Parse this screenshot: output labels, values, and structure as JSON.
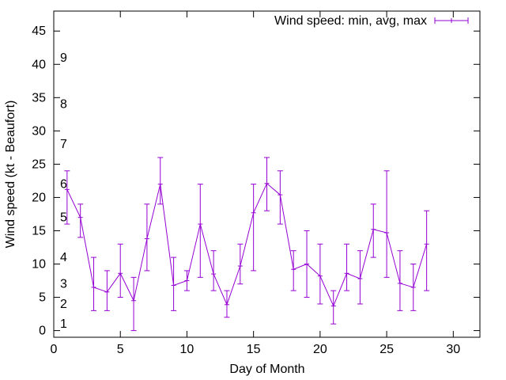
{
  "chart_data": {
    "type": "line",
    "xlabel": "Day of Month",
    "ylabel": "Wind speed (kt - Beaufort)",
    "xlim": [
      0,
      32
    ],
    "ylim": [
      -1,
      48
    ],
    "xticks": [
      "0",
      "5",
      "10",
      "15",
      "20",
      "25",
      "30"
    ],
    "xtick_values": [
      0,
      5,
      10,
      15,
      20,
      25,
      30
    ],
    "yticks": [
      "0",
      "5",
      "10",
      "15",
      "20",
      "25",
      "30",
      "35",
      "40",
      "45"
    ],
    "ytick_values": [
      0,
      5,
      10,
      15,
      20,
      25,
      30,
      35,
      40,
      45
    ],
    "grid": false,
    "legend_position": "top-right",
    "series": [
      {
        "name": "Wind speed: min, avg, max",
        "color": "#9400d3",
        "x": [
          1,
          2,
          3,
          4,
          5,
          6,
          7,
          8,
          9,
          10,
          11,
          12,
          13,
          14,
          15,
          16,
          17,
          18,
          19,
          20,
          21,
          22,
          23,
          24,
          25,
          26,
          27,
          28
        ],
        "avg": [
          21.2,
          17.0,
          6.5,
          5.8,
          8.6,
          4.5,
          13.8,
          22.0,
          6.8,
          7.5,
          16.0,
          8.5,
          3.9,
          9.7,
          17.7,
          22.1,
          20.4,
          9.2,
          10.0,
          8.2,
          3.7,
          8.6,
          7.8,
          15.2,
          14.7,
          7.1,
          6.5,
          13.0
        ],
        "min": [
          16.0,
          14.0,
          3.0,
          3.0,
          5.0,
          0.0,
          9.0,
          19.0,
          3.0,
          6.0,
          8.0,
          6.0,
          2.0,
          7.0,
          9.0,
          18.0,
          16.0,
          6.0,
          5.0,
          4.0,
          1.0,
          6.0,
          4.0,
          11.0,
          8.0,
          3.0,
          3.0,
          6.0
        ],
        "max": [
          24.0,
          19.0,
          11.0,
          9.0,
          13.0,
          8.0,
          19.0,
          26.0,
          11.0,
          9.0,
          22.0,
          12.0,
          6.0,
          13.0,
          22.0,
          26.0,
          24.0,
          12.0,
          15.0,
          13.0,
          6.0,
          13.0,
          12.0,
          19.0,
          24.0,
          12.0,
          10.0,
          18.0
        ]
      }
    ],
    "annotations": [
      {
        "text": "1",
        "y": 1
      },
      {
        "text": "2",
        "y": 4
      },
      {
        "text": "3",
        "y": 7
      },
      {
        "text": "4",
        "y": 11
      },
      {
        "text": "5",
        "y": 17
      },
      {
        "text": "6",
        "y": 22
      },
      {
        "text": "7",
        "y": 28
      },
      {
        "text": "8",
        "y": 34
      },
      {
        "text": "9",
        "y": 41
      }
    ]
  }
}
